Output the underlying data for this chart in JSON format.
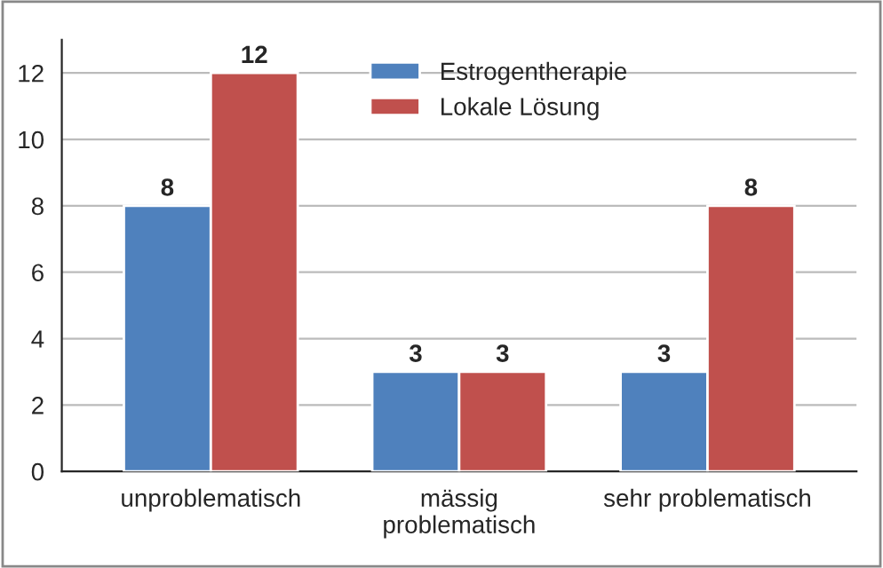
{
  "chart_data": {
    "type": "bar",
    "categories": [
      "unproblematisch",
      "mässig\nproblematisch",
      "sehr problematisch"
    ],
    "series": [
      {
        "name": "Estrogentherapie",
        "color": "#4f81bd",
        "values": [
          8,
          3,
          3
        ]
      },
      {
        "name": "Lokale Lösung",
        "color": "#c0504d",
        "values": [
          12,
          3,
          8
        ]
      }
    ],
    "ylim": [
      0,
      13
    ],
    "yticks": [
      0,
      2,
      4,
      6,
      8,
      10,
      12
    ],
    "grid": "y",
    "legend": "top",
    "data_labels": true
  }
}
